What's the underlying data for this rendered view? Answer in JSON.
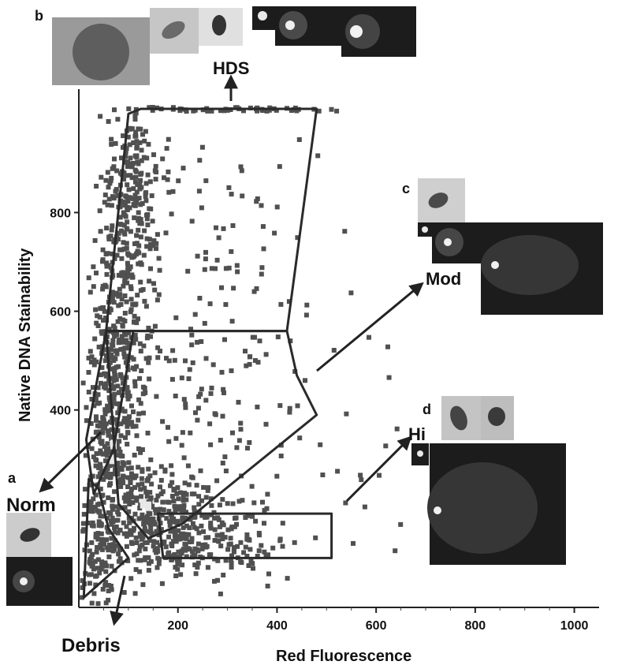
{
  "chart_data": {
    "type": "scatter",
    "xlabel": "Red Fluorescence",
    "ylabel": "Native DNA Stainability",
    "xlim": [
      0,
      1050
    ],
    "ylim": [
      0,
      1050
    ],
    "x_ticks": [
      200,
      400,
      600,
      800,
      1000
    ],
    "y_ticks": [
      400,
      600,
      800
    ],
    "grid": false,
    "gates": [
      {
        "name": "HDS",
        "vertices": [
          [
            100,
            1000
          ],
          [
            125,
            1010
          ],
          [
            480,
            1010
          ],
          [
            420,
            560
          ],
          [
            55,
            560
          ]
        ]
      },
      {
        "name": "Mod",
        "vertices": [
          [
            55,
            560
          ],
          [
            420,
            560
          ],
          [
            440,
            470
          ],
          [
            480,
            390
          ],
          [
            210,
            170
          ],
          [
            140,
            140
          ],
          [
            80,
            210
          ]
        ]
      },
      {
        "name": "Norm",
        "vertices": [
          [
            55,
            560
          ],
          [
            110,
            560
          ],
          [
            70,
            320
          ],
          [
            30,
            230
          ],
          [
            15,
            340
          ]
        ]
      },
      {
        "name": "Hi",
        "vertices": [
          [
            160,
            190
          ],
          [
            510,
            190
          ],
          [
            510,
            100
          ],
          [
            170,
            100
          ]
        ]
      },
      {
        "name": "Debris",
        "vertices": [
          [
            20,
            260
          ],
          [
            10,
            20
          ],
          [
            100,
            100
          ],
          [
            60,
            160
          ],
          [
            40,
            240
          ]
        ]
      }
    ],
    "annotations": [
      "HDS",
      "Mod",
      "Norm",
      "Hi",
      "Debris"
    ]
  },
  "panels": {
    "a": "a",
    "b": "b",
    "c": "c",
    "d": "d"
  },
  "colors": {
    "dot": "#505050",
    "gate": "#2a2a2a",
    "hot": "#e8e8e8",
    "micro_bg": "#1c1c1c"
  }
}
